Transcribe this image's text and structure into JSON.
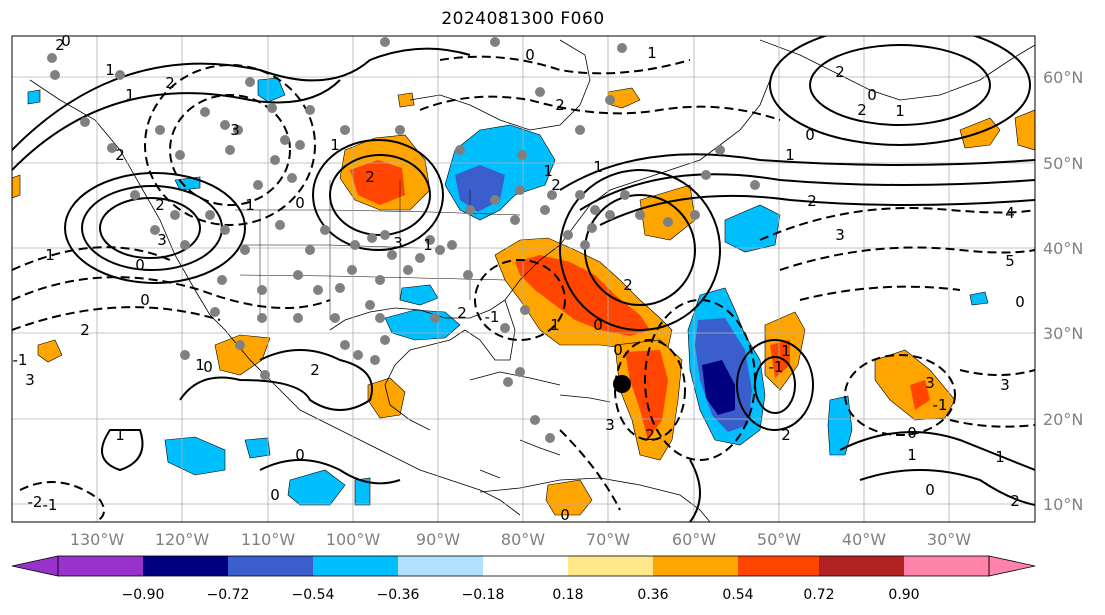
{
  "title": "2024081300 F060",
  "colors": {
    "neg_extreme": "#9932cc",
    "neg_090": "#000080",
    "neg_072": "#3a5fcd",
    "neg_054": "#00bfff",
    "neg_036": "#b0e2ff",
    "neutral": "#ffffff",
    "pos_018": "#ffe88a",
    "pos_036": "#ffa500",
    "pos_054": "#ff4500",
    "pos_072": "#b22222",
    "pos_090": "#ff82ab",
    "station_dot": "#808080",
    "storm_dot": "#000000",
    "grid": "#b0b0b0"
  },
  "axes": {
    "lon_labels": [
      "130°W",
      "120°W",
      "110°W",
      "100°W",
      "90°W",
      "80°W",
      "70°W",
      "60°W",
      "50°W",
      "40°W",
      "30°W"
    ],
    "lat_labels": [
      "60°N",
      "50°N",
      "40°N",
      "30°N",
      "20°N",
      "10°N"
    ]
  },
  "colorbar": {
    "ticks": [
      "−0.90",
      "−0.72",
      "−0.54",
      "−0.36",
      "−0.18",
      "0.18",
      "0.36",
      "0.54",
      "0.72",
      "0.90"
    ]
  },
  "contour_labels": [
    "0",
    "1",
    "2",
    "3",
    "1",
    "0",
    "2",
    "3",
    "2",
    "1",
    "0",
    "1",
    "2",
    "3",
    "-1",
    "0",
    "2",
    "1",
    "3",
    "2",
    "0",
    "1",
    "-1",
    "2",
    "3",
    "-1",
    "0",
    "1",
    "2",
    "0",
    "1",
    "2",
    "0",
    "1",
    "2",
    "1",
    "0",
    "1",
    "2",
    "3",
    "4",
    "5",
    "0",
    "1",
    "2",
    "0",
    "3",
    "-2",
    "-1",
    "0",
    "1",
    "2",
    "0",
    "1",
    "2",
    "3",
    "0",
    "1",
    "2",
    "0",
    "1",
    "-1",
    "2",
    "0",
    "1",
    "2"
  ]
}
